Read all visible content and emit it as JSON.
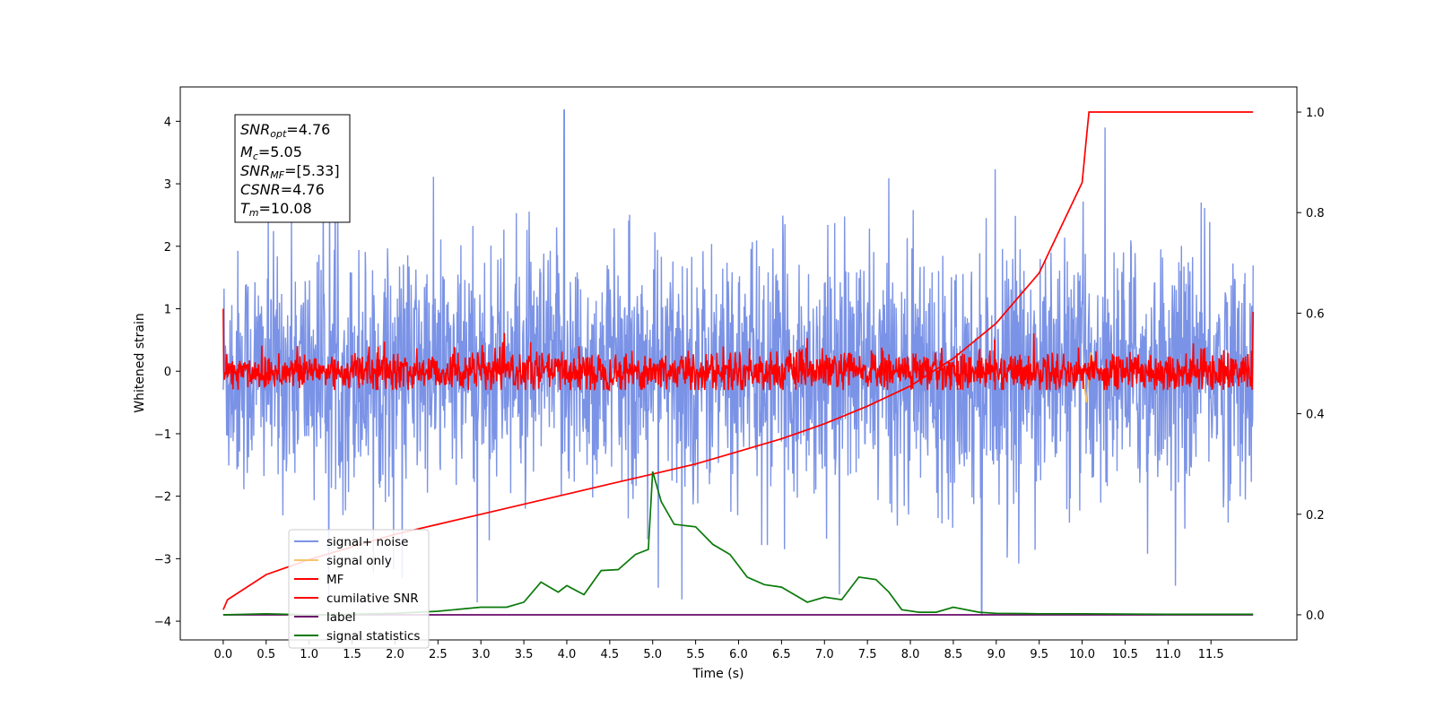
{
  "chart_data": {
    "type": "line",
    "xlabel": "Time (s)",
    "ylabel": "Whitened strain",
    "xlim": [
      -0.5,
      12.5
    ],
    "ylim": [
      -4.3,
      4.55
    ],
    "y2lim": [
      -0.05,
      1.05
    ],
    "x_ticks": [
      "0.0",
      "0.5",
      "1.0",
      "1.5",
      "2.0",
      "2.5",
      "3.0",
      "3.5",
      "4.0",
      "4.5",
      "5.0",
      "5.5",
      "6.0",
      "6.5",
      "7.0",
      "7.5",
      "8.0",
      "8.5",
      "9.0",
      "9.5",
      "10.0",
      "10.5",
      "11.0",
      "11.5"
    ],
    "y_ticks": [
      "4",
      "3",
      "2",
      "1",
      "0",
      "−1",
      "−2",
      "−3",
      "−4"
    ],
    "y2_ticks": [
      "1.0",
      "0.8",
      "0.6",
      "0.4",
      "0.2",
      "0.0"
    ],
    "legend_placement": "lower-left",
    "legend": [
      {
        "name": "signal+ noise",
        "color": "#7b93e6"
      },
      {
        "name": "signal only",
        "color": "#f5c56b"
      },
      {
        "name": "MF",
        "color": "#ff0000"
      },
      {
        "name": "cumilative SNR",
        "color": "#ff0000"
      },
      {
        "name": "label",
        "color": "#6a0a6a"
      },
      {
        "name": "signal statistics",
        "color": "#0a7a0a"
      }
    ],
    "stats_box": {
      "snr_opt": {
        "name": "SNR",
        "sub": "opt",
        "value": "=4.76"
      },
      "mc": {
        "name": "M",
        "sub": "c",
        "value": "=5.05"
      },
      "snr_mf": {
        "name": "SNR",
        "sub": "MF",
        "value": "=[5.33]"
      },
      "csnr": {
        "name": "CSNR",
        "sub": "",
        "value": "=4.76"
      },
      "tm": {
        "name": "T",
        "sub": "m",
        "value": "=10.08"
      }
    },
    "series": [
      {
        "name": "signal+ noise",
        "axis": "left",
        "x_range": [
          0.0,
          11.99
        ],
        "amplitude_range": [
          -3.7,
          4.2
        ],
        "note_peaks": [
          [
            3.97,
            4.18
          ],
          [
            8.83,
            -3.9
          ],
          [
            5.34,
            -3.65
          ]
        ]
      },
      {
        "name": "signal only",
        "axis": "left",
        "x_range": [
          0.0,
          11.99
        ],
        "x": [
          10.0,
          10.05,
          10.1,
          10.15
        ],
        "y": [
          0.0,
          -0.5,
          0.3,
          0.0
        ]
      },
      {
        "name": "MF",
        "axis": "left",
        "x_range": [
          0.0,
          11.99
        ],
        "amplitude_range": [
          -0.3,
          1.0
        ]
      },
      {
        "name": "cumilative SNR",
        "axis": "right",
        "x": [
          0.0,
          0.05,
          0.5,
          1.0,
          1.5,
          2.0,
          2.5,
          3.0,
          3.5,
          4.0,
          4.5,
          5.0,
          5.5,
          6.0,
          6.5,
          7.0,
          7.5,
          8.0,
          8.5,
          9.0,
          9.5,
          10.0,
          10.05,
          10.08,
          11.99
        ],
        "y": [
          0.01,
          0.03,
          0.08,
          0.11,
          0.135,
          0.16,
          0.18,
          0.2,
          0.22,
          0.24,
          0.26,
          0.28,
          0.3,
          0.325,
          0.35,
          0.38,
          0.415,
          0.455,
          0.51,
          0.58,
          0.68,
          0.86,
          0.95,
          1.0,
          1.0
        ]
      },
      {
        "name": "label",
        "axis": "right",
        "x": [
          0.0,
          11.99
        ],
        "y": [
          0.0,
          0.0
        ]
      },
      {
        "name": "signal statistics",
        "axis": "right",
        "x": [
          0.0,
          0.5,
          1.0,
          1.5,
          2.0,
          2.5,
          3.0,
          3.3,
          3.5,
          3.7,
          3.9,
          4.0,
          4.2,
          4.4,
          4.6,
          4.8,
          4.95,
          5.0,
          5.1,
          5.25,
          5.5,
          5.7,
          5.9,
          6.1,
          6.3,
          6.5,
          6.8,
          7.0,
          7.2,
          7.4,
          7.6,
          7.75,
          7.9,
          8.1,
          8.3,
          8.5,
          8.8,
          9.0,
          9.5,
          10.0,
          11.0,
          11.99
        ],
        "y": [
          0.0,
          0.002,
          0.0,
          0.001,
          0.003,
          0.007,
          0.015,
          0.015,
          0.025,
          0.065,
          0.045,
          0.058,
          0.04,
          0.088,
          0.09,
          0.12,
          0.13,
          0.285,
          0.225,
          0.18,
          0.175,
          0.14,
          0.12,
          0.075,
          0.06,
          0.055,
          0.025,
          0.035,
          0.03,
          0.075,
          0.07,
          0.045,
          0.01,
          0.005,
          0.005,
          0.015,
          0.005,
          0.003,
          0.002,
          0.002,
          0.001,
          0.001
        ]
      }
    ]
  }
}
